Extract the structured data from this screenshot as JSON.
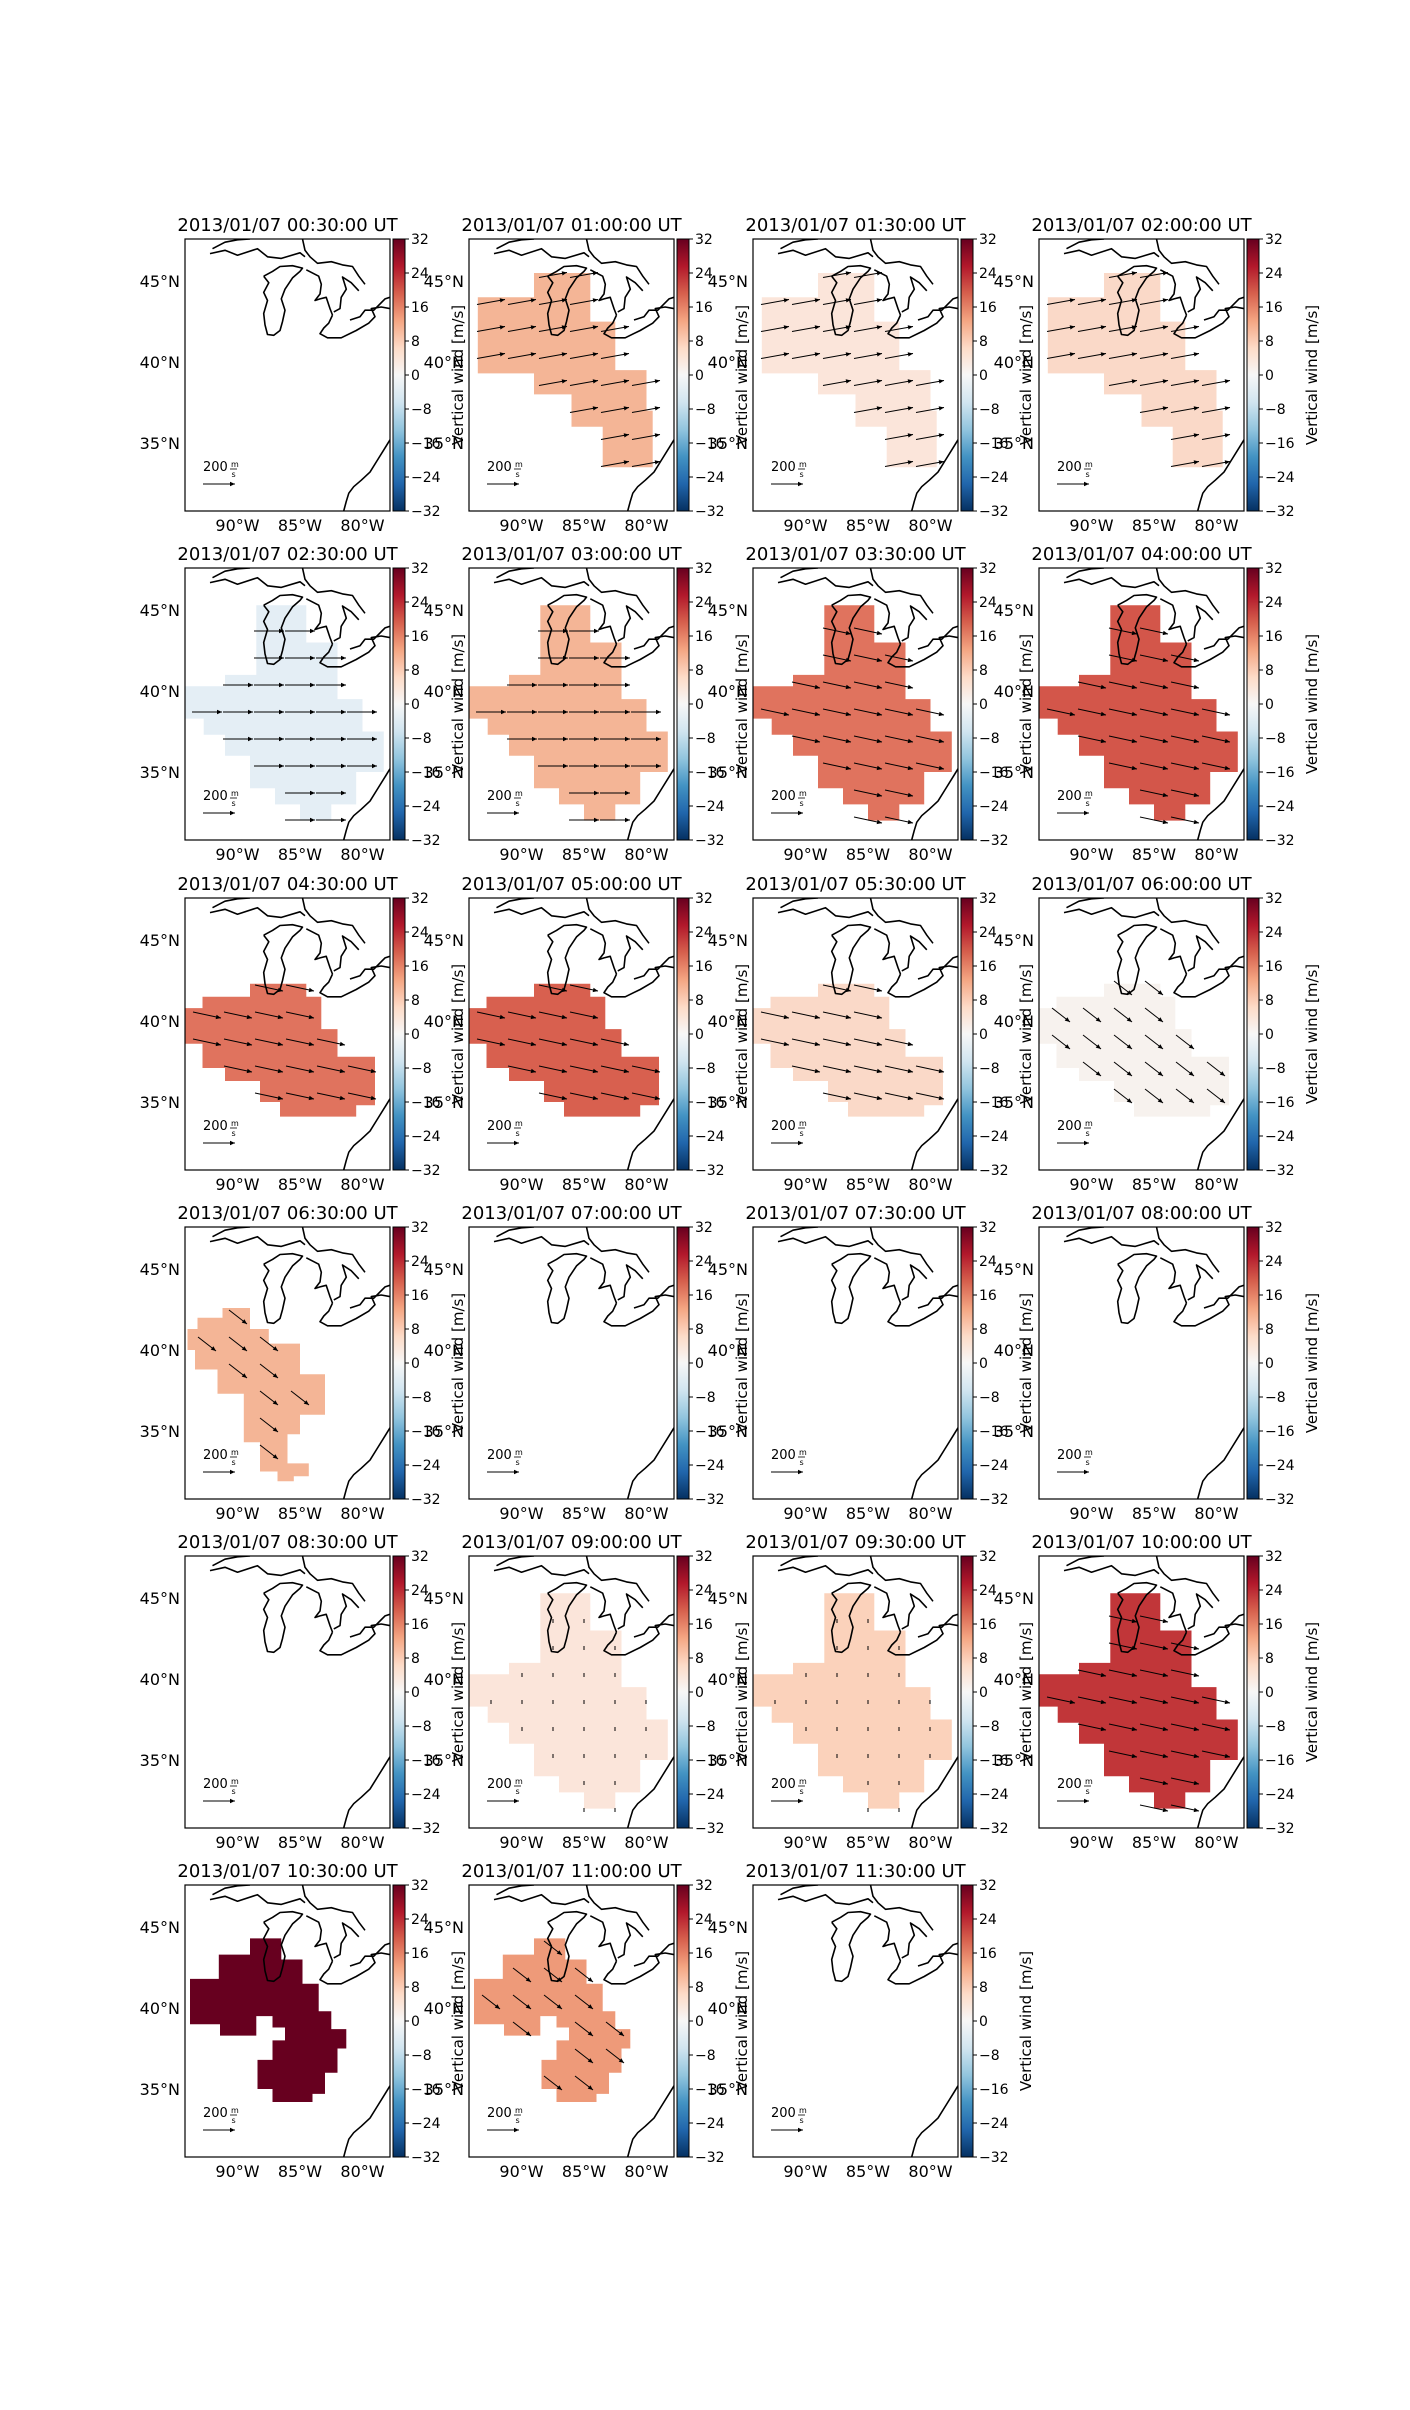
{
  "figure": {
    "panels": [
      {
        "title": "2013/01/07 00:30:00 UT",
        "color": "#ffffff",
        "region": "none",
        "arrows": "none"
      },
      {
        "title": "2013/01/07 01:00:00 UT",
        "color": "#f4b596",
        "region": "midwest_se",
        "arrows": "east_n"
      },
      {
        "title": "2013/01/07 01:30:00 UT",
        "color": "#fbe5da",
        "region": "midwest_se",
        "arrows": "east_n"
      },
      {
        "title": "2013/01/07 02:00:00 UT",
        "color": "#fad9c8",
        "region": "midwest_se",
        "arrows": "east_n"
      },
      {
        "title": "2013/01/07 02:30:00 UT",
        "color": "#e4eef5",
        "region": "wide",
        "arrows": "east"
      },
      {
        "title": "2013/01/07 03:00:00 UT",
        "color": "#f4b596",
        "region": "wide",
        "arrows": "east"
      },
      {
        "title": "2013/01/07 03:30:00 UT",
        "color": "#e0735e",
        "region": "wide",
        "arrows": "east_s"
      },
      {
        "title": "2013/01/07 04:00:00 UT",
        "color": "#d3564a",
        "region": "wide",
        "arrows": "east_s"
      },
      {
        "title": "2013/01/07 04:30:00 UT",
        "color": "#e0735e",
        "region": "band",
        "arrows": "east_s"
      },
      {
        "title": "2013/01/07 05:00:00 UT",
        "color": "#d8604f",
        "region": "band",
        "arrows": "east_s"
      },
      {
        "title": "2013/01/07 05:30:00 UT",
        "color": "#fad9c8",
        "region": "band",
        "arrows": "east_s"
      },
      {
        "title": "2013/01/07 06:00:00 UT",
        "color": "#f7f2ee",
        "region": "band",
        "arrows": "se"
      },
      {
        "title": "2013/01/07 06:30:00 UT",
        "color": "#f4b596",
        "region": "diag",
        "arrows": "se"
      },
      {
        "title": "2013/01/07 07:00:00 UT",
        "color": "#ffffff",
        "region": "none",
        "arrows": "none"
      },
      {
        "title": "2013/01/07 07:30:00 UT",
        "color": "#ffffff",
        "region": "none",
        "arrows": "none"
      },
      {
        "title": "2013/01/07 08:00:00 UT",
        "color": "#ffffff",
        "region": "none",
        "arrows": "none"
      },
      {
        "title": "2013/01/07 08:30:00 UT",
        "color": "#ffffff",
        "region": "none",
        "arrows": "none"
      },
      {
        "title": "2013/01/07 09:00:00 UT",
        "color": "#fbe5da",
        "region": "wide",
        "arrows": "dots"
      },
      {
        "title": "2013/01/07 09:30:00 UT",
        "color": "#fbd2bb",
        "region": "wide",
        "arrows": "dots"
      },
      {
        "title": "2013/01/07 10:00:00 UT",
        "color": "#c13639",
        "region": "wide",
        "arrows": "east_s"
      },
      {
        "title": "2013/01/07 10:30:00 UT",
        "color": "#67001f",
        "region": "hook",
        "arrows": "none"
      },
      {
        "title": "2013/01/07 11:00:00 UT",
        "color": "#ee9a79",
        "region": "hook",
        "arrows": "se"
      },
      {
        "title": "2013/01/07 11:30:00 UT",
        "color": "#ffffff",
        "region": "none",
        "arrows": "none"
      }
    ],
    "lat_labels": [
      "45°N",
      "40°N",
      "35°N"
    ],
    "lon_labels": [
      "90°W",
      "85°W",
      "80°W"
    ],
    "colorbar": {
      "ticks": [
        "32",
        "24",
        "16",
        "8",
        "0",
        "−8",
        "−16",
        "−24",
        "−32"
      ],
      "label": "Vertical wind [m/s]",
      "range": [
        -32,
        32
      ],
      "colormap": "RdBu_r",
      "colors": [
        "#67001f",
        "#b2182b",
        "#d6604d",
        "#f4a582",
        "#fddbc7",
        "#f7f7f7",
        "#d1e5f0",
        "#92c5de",
        "#4393c3",
        "#2166ac",
        "#053061"
      ]
    },
    "quiver_key": {
      "value": "200",
      "unit_num": "m",
      "unit_den": "s"
    },
    "colors": {
      "frame": "#000000",
      "coast": "#000000",
      "arrow": "#000000"
    }
  }
}
